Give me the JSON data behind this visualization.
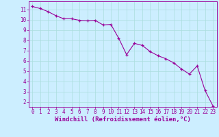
{
  "x": [
    0,
    1,
    2,
    3,
    4,
    5,
    6,
    7,
    8,
    9,
    10,
    11,
    12,
    13,
    14,
    15,
    16,
    17,
    18,
    19,
    20,
    21,
    22,
    23
  ],
  "y": [
    11.3,
    11.1,
    10.8,
    10.4,
    10.1,
    10.1,
    9.95,
    9.9,
    9.95,
    9.5,
    9.55,
    8.2,
    6.6,
    7.7,
    7.5,
    6.9,
    6.5,
    6.2,
    5.8,
    5.2,
    4.7,
    5.5,
    3.1,
    1.6
  ],
  "line_color": "#990099",
  "marker_color": "#990099",
  "bg_color": "#cceeff",
  "grid_color": "#aadddd",
  "xlabel": "Windchill (Refroidissement éolien,°C)",
  "xlim": [
    -0.5,
    23.5
  ],
  "ylim": [
    1.5,
    11.8
  ],
  "yticks": [
    2,
    3,
    4,
    5,
    6,
    7,
    8,
    9,
    10,
    11
  ],
  "xticks": [
    0,
    1,
    2,
    3,
    4,
    5,
    6,
    7,
    8,
    9,
    10,
    11,
    12,
    13,
    14,
    15,
    16,
    17,
    18,
    19,
    20,
    21,
    22,
    23
  ],
  "font_color": "#990099",
  "tick_color": "#990099",
  "spine_color": "#990099",
  "tick_fontsize": 5.5,
  "xlabel_fontsize": 6.5
}
